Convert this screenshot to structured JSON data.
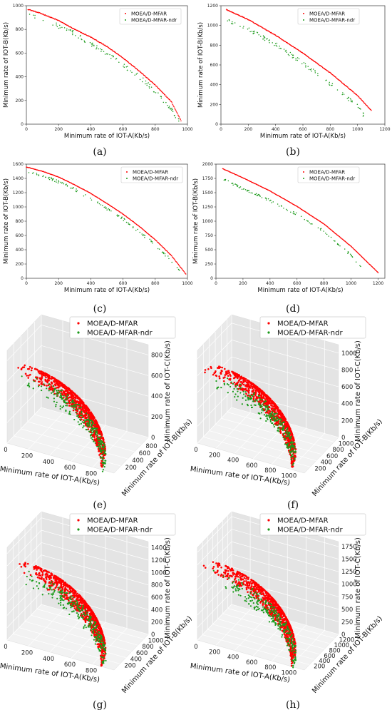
{
  "colors": {
    "s1": "#ff0000",
    "s2": "#1a9a1a"
  },
  "legend": [
    "MOEA/D-MFAR",
    "MOEA/D-MFAR-ndr"
  ],
  "chart_data": [
    {
      "id": "a",
      "caption": "(a)",
      "type": "scatter",
      "xlabel": "Minimum rate of IOT-A(Kb/s)",
      "ylabel": "Minimum rate of IOT-B(Kb/s)",
      "xlim": [
        0,
        1000
      ],
      "ylim": [
        0,
        1000
      ],
      "xticks": [
        0,
        200,
        400,
        600,
        800,
        1000
      ],
      "yticks": [
        0,
        200,
        400,
        600,
        800,
        1000
      ],
      "series": [
        {
          "name": "MOEA/D-MFAR",
          "x": [
            10,
            100,
            200,
            300,
            400,
            500,
            600,
            700,
            800,
            900,
            960
          ],
          "y": [
            970,
            930,
            875,
            800,
            735,
            655,
            560,
            450,
            330,
            190,
            30
          ]
        },
        {
          "name": "MOEA/D-MFAR-ndr",
          "x": [
            20,
            100,
            200,
            300,
            400,
            500,
            600,
            700,
            800,
            900,
            950
          ],
          "y": [
            930,
            890,
            830,
            765,
            680,
            600,
            500,
            400,
            280,
            130,
            20
          ]
        }
      ]
    },
    {
      "id": "b",
      "caption": "(b)",
      "type": "scatter",
      "xlabel": "Minimum rate of IOT-A(Kb/s)",
      "ylabel": "Minimum rate of IOT-B(Kb/s)",
      "xlim": [
        0,
        1200
      ],
      "ylim": [
        0,
        1200
      ],
      "xticks": [
        0,
        200,
        400,
        600,
        800,
        1000,
        1200
      ],
      "yticks": [
        0,
        200,
        400,
        600,
        800,
        1000,
        1200
      ],
      "series": [
        {
          "name": "MOEA/D-MFAR",
          "x": [
            40,
            200,
            400,
            600,
            800,
            1000,
            1100
          ],
          "y": [
            1160,
            1060,
            900,
            720,
            520,
            290,
            140
          ]
        },
        {
          "name": "MOEA/D-MFAR-ndr",
          "x": [
            40,
            200,
            400,
            600,
            800,
            1000,
            1060
          ],
          "y": [
            1060,
            960,
            810,
            620,
            410,
            180,
            60
          ]
        }
      ]
    },
    {
      "id": "c",
      "caption": "(c)",
      "type": "scatter",
      "xlabel": "Minimum rate of IOT-A(Kb/s)",
      "ylabel": "Minimum rate of IOT-B(Kb/s)",
      "xlim": [
        0,
        1000
      ],
      "ylim": [
        0,
        1600
      ],
      "xticks": [
        0,
        200,
        400,
        600,
        800,
        1000
      ],
      "yticks": [
        0,
        200,
        400,
        600,
        800,
        1000,
        1200,
        1400,
        1600
      ],
      "series": [
        {
          "name": "MOEA/D-MFAR",
          "x": [
            0,
            100,
            200,
            300,
            400,
            500,
            600,
            700,
            800,
            900,
            990
          ],
          "y": [
            1560,
            1500,
            1420,
            1310,
            1190,
            1050,
            900,
            730,
            540,
            320,
            60
          ]
        },
        {
          "name": "MOEA/D-MFAR-ndr",
          "x": [
            10,
            100,
            200,
            300,
            400,
            500,
            600,
            700,
            800,
            900,
            970
          ],
          "y": [
            1500,
            1440,
            1350,
            1250,
            1110,
            980,
            830,
            650,
            470,
            250,
            70
          ]
        }
      ]
    },
    {
      "id": "d",
      "caption": "(d)",
      "type": "scatter",
      "xlabel": "Minimum rate of IOT-A(Kb/s)",
      "ylabel": "Minimum rate of IOT-B(Kb/s)",
      "xlim": [
        0,
        1250
      ],
      "ylim": [
        0,
        2000
      ],
      "xticks": [
        0,
        200,
        400,
        600,
        800,
        1000,
        1200
      ],
      "yticks": [
        0,
        250,
        500,
        750,
        1000,
        1250,
        1500,
        1750,
        2000
      ],
      "series": [
        {
          "name": "MOEA/D-MFAR",
          "x": [
            50,
            200,
            400,
            600,
            800,
            1000,
            1200
          ],
          "y": [
            1920,
            1760,
            1530,
            1260,
            950,
            560,
            100
          ]
        },
        {
          "name": "MOEA/D-MFAR-ndr",
          "x": [
            50,
            200,
            400,
            600,
            800,
            1000,
            1100
          ],
          "y": [
            1740,
            1570,
            1360,
            1120,
            820,
            400,
            100
          ]
        }
      ]
    },
    {
      "id": "e",
      "caption": "(e)",
      "type": "scatter3d",
      "xlabel": "Minimum rate of IOT-A(Kb/s)",
      "ylabel": "Minimum rate of IOT-B(Kb/s)",
      "zlabel": "Minimum rate of IOT-C(Kb/s)",
      "xticks": [
        0,
        200,
        400,
        600,
        800
      ],
      "yticks": [
        200,
        400,
        600,
        800
      ],
      "zticks": [
        0,
        200,
        400,
        600,
        800
      ],
      "xmax": 1000,
      "ymax": 1000,
      "zmax": 900
    },
    {
      "id": "f",
      "caption": "(f)",
      "type": "scatter3d",
      "xlabel": "Minimum rate of IOT-A(Kb/s)",
      "ylabel": "Minimum rate of IOT-B(Kb/s)",
      "zlabel": "Minimum rate of IOT-C(Kb/s)",
      "xticks": [
        0,
        200,
        400,
        600,
        800,
        1000
      ],
      "yticks": [
        200,
        400,
        600,
        800,
        1000
      ],
      "zticks": [
        0,
        200,
        400,
        600,
        800,
        1000
      ],
      "xmax": 1150,
      "ymax": 1150,
      "zmax": 1100
    },
    {
      "id": "g",
      "caption": "(g)",
      "type": "scatter3d",
      "xlabel": "Minimum rate of IOT-A(Kb/s)",
      "ylabel": "Minimum rate of IOT-B(Kb/s)",
      "zlabel": "Minimum rate of IOT-C(Kb/s)",
      "xticks": [
        0,
        200,
        400,
        600,
        800
      ],
      "yticks": [
        200,
        400,
        600,
        800,
        1000
      ],
      "zticks": [
        0,
        200,
        400,
        600,
        800,
        1000,
        1200,
        1400
      ],
      "xmax": 1000,
      "ymax": 1150,
      "zmax": 1500
    },
    {
      "id": "h",
      "caption": "(h)",
      "type": "scatter3d",
      "xlabel": "Minimum rate of IOT-A(Kb/s)",
      "ylabel": "Minimum rate of IOT-B(Kb/s)",
      "zlabel": "Minimum rate of IOT-C(Kb/s)",
      "xticks": [
        0,
        200,
        400,
        600,
        800,
        1000
      ],
      "yticks": [
        200,
        400,
        600,
        800,
        1000,
        1200
      ],
      "zticks": [
        0,
        250,
        500,
        750,
        1000,
        1250,
        1500,
        1750
      ],
      "xmax": 1150,
      "ymax": 1350,
      "zmax": 1850
    }
  ]
}
